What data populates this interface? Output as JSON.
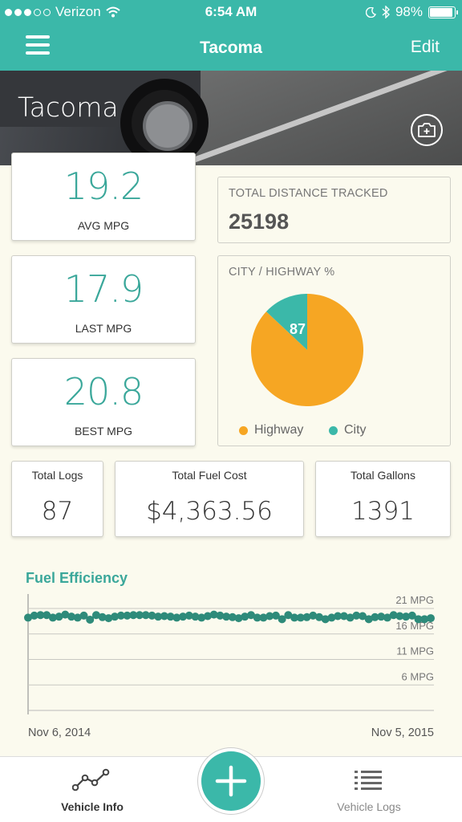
{
  "status_bar": {
    "carrier": "Verizon",
    "time": "6:54 AM",
    "battery": "98%",
    "battery_level": 0.98,
    "signal_bars_filled": 3
  },
  "nav": {
    "title": "Tacoma",
    "edit_label": "Edit"
  },
  "hero": {
    "vehicle_name": "Tacoma",
    "camera_icon": "camera-add-icon"
  },
  "stats": {
    "avg_mpg": {
      "value": "19.2",
      "label": "AVG MPG"
    },
    "last_mpg": {
      "value": "17.9",
      "label": "LAST MPG"
    },
    "best_mpg": {
      "value": "20.8",
      "label": "BEST MPG"
    }
  },
  "distance": {
    "label": "TOTAL DISTANCE TRACKED",
    "value": "25198"
  },
  "city_highway": {
    "label": "CITY / HIGHWAY %",
    "slice_label": "87",
    "legend": [
      {
        "name": "Highway",
        "color": "#f6a623"
      },
      {
        "name": "City",
        "color": "#3bb8a9"
      }
    ]
  },
  "totals": {
    "logs": {
      "label": "Total Logs",
      "value": "87"
    },
    "fuel_cost": {
      "label": "Total Fuel Cost",
      "value": "$4,363.56"
    },
    "gallons": {
      "label": "Total Gallons",
      "value": "1391"
    }
  },
  "fuel_efficiency": {
    "title": "Fuel Efficiency",
    "start_date": "Nov 6, 2014",
    "end_date": "Nov 5, 2015"
  },
  "chart_data": [
    {
      "type": "pie",
      "title": "CITY / HIGHWAY %",
      "slices": [
        {
          "name": "Highway",
          "value": 87,
          "color": "#f6a623"
        },
        {
          "name": "City",
          "value": 13,
          "color": "#3bb8a9"
        }
      ],
      "slice_labels": [
        "87"
      ],
      "legend": "bottom"
    },
    {
      "type": "line",
      "title": "Fuel Efficiency",
      "y_tick_labels": [
        "21 MPG",
        "16 MPG",
        "11 MPG",
        "6 MPG"
      ],
      "y_ticks": [
        21,
        16,
        11,
        6
      ],
      "ylim": [
        1,
        21
      ],
      "x_start_label": "Nov 6, 2014",
      "x_end_label": "Nov 5, 2015",
      "grid": true,
      "color": "#2e8b7a",
      "series": [
        {
          "values": [
            19.2,
            19.6,
            19.7,
            19.7,
            19.2,
            19.4,
            19.8,
            19.4,
            19.2,
            19.6,
            18.8,
            19.7,
            19.3,
            19.1,
            19.4,
            19.6,
            19.6,
            19.7,
            19.7,
            19.7,
            19.6,
            19.4,
            19.5,
            19.4,
            19.2,
            19.4,
            19.6,
            19.4,
            19.2,
            19.5,
            19.8,
            19.6,
            19.4,
            19.3,
            19.1,
            19.4,
            19.7,
            19.2,
            19.2,
            19.5,
            19.6,
            18.9,
            19.7,
            19.2,
            19.2,
            19.3,
            19.6,
            19.3,
            18.9,
            19.2,
            19.5,
            19.5,
            19.2,
            19.6,
            19.5,
            18.9,
            19.3,
            19.4,
            19.2,
            19.7,
            19.5,
            19.4,
            19.6,
            18.9,
            18.9,
            19.1
          ]
        }
      ]
    }
  ],
  "tabbar": {
    "vehicle_info": "Vehicle Info",
    "vehicle_logs": "Vehicle Logs",
    "add_icon": "plus-icon"
  }
}
